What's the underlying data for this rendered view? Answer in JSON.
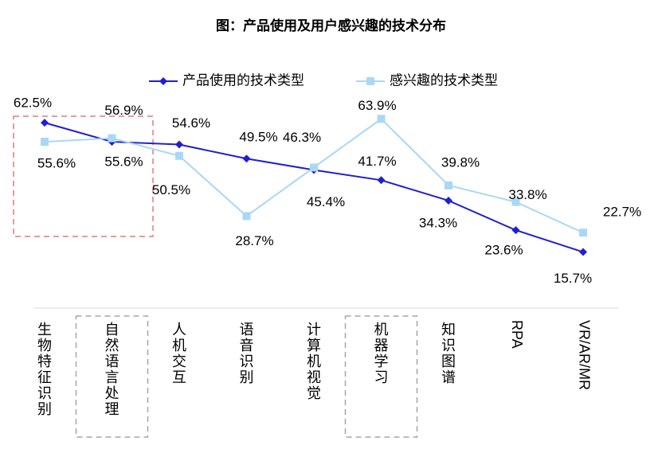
{
  "chart_data": {
    "type": "line",
    "title": "图：产品使用及用户感兴趣的技术分布",
    "categories": [
      "生物特征识别",
      "自然语言处理",
      "人机交互",
      "语音识别",
      "计算机视觉",
      "机器学习",
      "知识图谱",
      "RPA",
      "VR/AR/MR"
    ],
    "series": [
      {
        "name": "产品使用的技术类型",
        "values": [
          62.5,
          55.6,
          54.6,
          49.5,
          45.4,
          41.7,
          34.3,
          23.6,
          15.7
        ],
        "color": "#1f1fd0",
        "marker": "diamond"
      },
      {
        "name": "感兴趣的技术类型",
        "values": [
          55.6,
          56.9,
          50.5,
          28.7,
          46.3,
          63.9,
          39.8,
          33.8,
          22.7
        ],
        "color": "#a9d8f5",
        "marker": "square"
      }
    ],
    "value_labels": {
      "series0": [
        "62.5%",
        "55.6%",
        "54.6%",
        "49.5%",
        "45.4%",
        "41.7%",
        "34.3%",
        "23.6%",
        "15.7%"
      ],
      "series1": [
        "55.6%",
        "56.9%",
        "50.5%",
        "28.7%",
        "46.3%",
        "63.9%",
        "39.8%",
        "33.8%",
        "22.7%"
      ]
    },
    "legend_position": "top-center",
    "grid": false,
    "highlight_boxes": [
      "生物特征识别",
      "自然语言处理",
      "机器学习"
    ]
  }
}
